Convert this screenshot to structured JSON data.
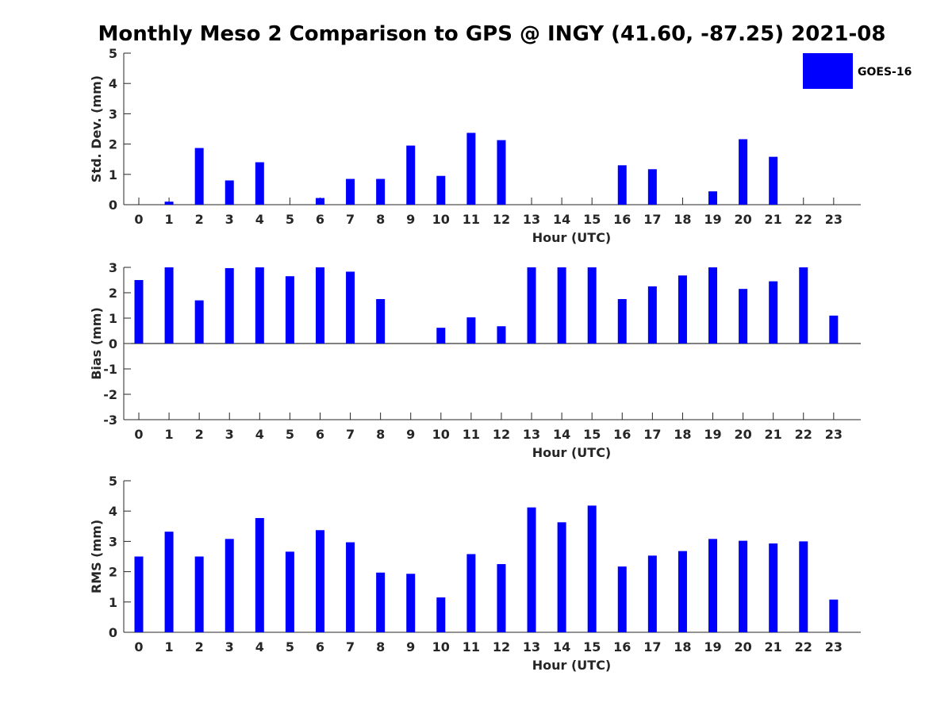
{
  "title": "Monthly Meso 2 Comparison to GPS @ INGY (41.60, -87.25) 2021-08",
  "colors": {
    "bar": "#0000ff",
    "axis": "#262626"
  },
  "legend": {
    "label": "GOES-16",
    "placement": "top-right"
  },
  "chart_data": [
    {
      "type": "bar",
      "xlabel": "Hour (UTC)",
      "ylabel": "Std. Dev. (mm)",
      "ylim": [
        0,
        5
      ],
      "yticks": [
        0,
        1,
        2,
        3,
        4,
        5
      ],
      "grid": false,
      "categories": [
        "0",
        "1",
        "2",
        "3",
        "4",
        "5",
        "6",
        "7",
        "8",
        "9",
        "10",
        "11",
        "12",
        "13",
        "14",
        "15",
        "16",
        "17",
        "18",
        "19",
        "20",
        "21",
        "22",
        "23"
      ],
      "series": [
        {
          "name": "GOES-16",
          "values": [
            0,
            0.1,
            1.87,
            0.8,
            1.4,
            0,
            0.22,
            0.85,
            0.85,
            1.95,
            0.95,
            2.37,
            2.13,
            0,
            0,
            0,
            1.3,
            1.17,
            0,
            0.44,
            2.16,
            1.58,
            0,
            0
          ]
        }
      ]
    },
    {
      "type": "bar",
      "xlabel": "Hour (UTC)",
      "ylabel": "Bias (mm)",
      "ylim": [
        -3,
        3
      ],
      "yticks": [
        -3,
        -2,
        -1,
        0,
        1,
        2,
        3
      ],
      "grid": false,
      "categories": [
        "0",
        "1",
        "2",
        "3",
        "4",
        "5",
        "6",
        "7",
        "8",
        "9",
        "10",
        "11",
        "12",
        "13",
        "14",
        "15",
        "16",
        "17",
        "18",
        "19",
        "20",
        "21",
        "22",
        "23"
      ],
      "series": [
        {
          "name": "GOES-16",
          "values": [
            2.5,
            3.0,
            1.7,
            2.97,
            3.0,
            2.65,
            3.0,
            2.83,
            1.75,
            0,
            0.62,
            1.03,
            0.68,
            3.0,
            3.0,
            3.0,
            1.75,
            2.25,
            2.68,
            3.0,
            2.15,
            2.45,
            3.0,
            1.1
          ]
        }
      ]
    },
    {
      "type": "bar",
      "xlabel": "Hour (UTC)",
      "ylabel": "RMS (mm)",
      "ylim": [
        0,
        5
      ],
      "yticks": [
        0,
        1,
        2,
        3,
        4,
        5
      ],
      "grid": false,
      "categories": [
        "0",
        "1",
        "2",
        "3",
        "4",
        "5",
        "6",
        "7",
        "8",
        "9",
        "10",
        "11",
        "12",
        "13",
        "14",
        "15",
        "16",
        "17",
        "18",
        "19",
        "20",
        "21",
        "22",
        "23"
      ],
      "series": [
        {
          "name": "GOES-16",
          "values": [
            2.5,
            3.32,
            2.5,
            3.08,
            3.77,
            2.66,
            3.37,
            2.97,
            1.97,
            1.93,
            1.15,
            2.58,
            2.25,
            4.12,
            3.63,
            4.18,
            2.17,
            2.53,
            2.68,
            3.08,
            3.02,
            2.93,
            3.0,
            1.08
          ]
        }
      ]
    }
  ]
}
